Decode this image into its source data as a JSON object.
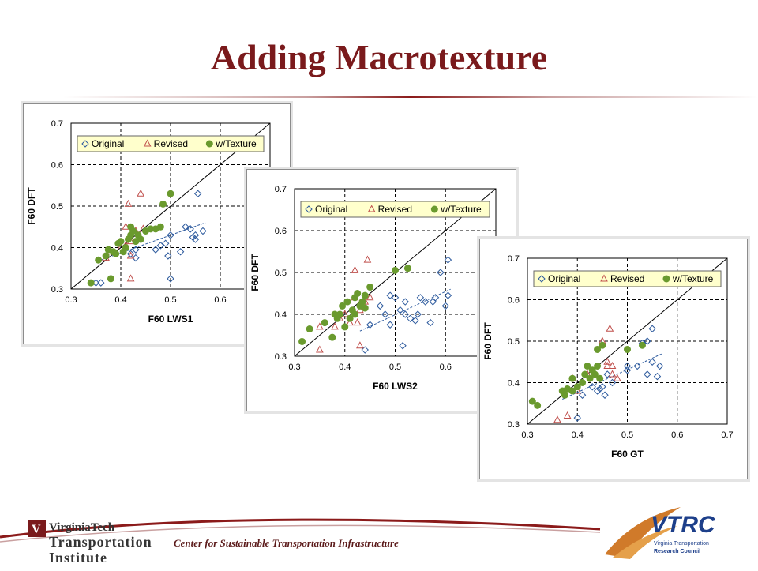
{
  "slide": {
    "title": "Adding Macrotexture",
    "footer_text": "Center for Sustainable Transportation Infrastructure"
  },
  "logos": {
    "vt_line1": "VirginiaTech",
    "vt_line2": "Transportation",
    "vt_line3": "Institute",
    "vtrc_name": "VTRC",
    "vtrc_sub1": "Virginia Transportation",
    "vtrc_sub2": "Research Council"
  },
  "colors": {
    "title": "#7a1a1c",
    "original": "#2e5b9e",
    "revised": "#c0504d",
    "texture": "#6a9a2e",
    "legend_bg": "#ffffcc"
  },
  "chart_data": [
    {
      "type": "scatter",
      "xlabel": "F60 LWS1",
      "ylabel": "F60 DFT",
      "xlim": [
        0.3,
        0.7
      ],
      "ylim": [
        0.3,
        0.7
      ],
      "xticks": [
        "0.3",
        "0.4",
        "0.5",
        "0.6"
      ],
      "yticks": [
        "0.3",
        "0.4",
        "0.5",
        "0.6",
        "0.7"
      ],
      "grid": "dashed",
      "legend": "top",
      "reference_line": "y = x",
      "trend_line": {
        "from": [
          0.36,
          0.37
        ],
        "to": [
          0.57,
          0.46
        ]
      },
      "series": [
        {
          "name": "Original",
          "marker": "diamond",
          "points": [
            [
              0.35,
              0.315
            ],
            [
              0.36,
              0.315
            ],
            [
              0.42,
              0.385
            ],
            [
              0.43,
              0.375
            ],
            [
              0.43,
              0.395
            ],
            [
              0.47,
              0.395
            ],
            [
              0.48,
              0.405
            ],
            [
              0.49,
              0.41
            ],
            [
              0.495,
              0.38
            ],
            [
              0.5,
              0.43
            ],
            [
              0.5,
              0.325
            ],
            [
              0.52,
              0.39
            ],
            [
              0.53,
              0.45
            ],
            [
              0.54,
              0.445
            ],
            [
              0.545,
              0.425
            ],
            [
              0.55,
              0.43
            ],
            [
              0.55,
              0.42
            ],
            [
              0.555,
              0.53
            ],
            [
              0.565,
              0.44
            ]
          ]
        },
        {
          "name": "Revised",
          "marker": "triangle",
          "points": [
            [
              0.37,
              0.375
            ],
            [
              0.38,
              0.39
            ],
            [
              0.4,
              0.4
            ],
            [
              0.41,
              0.405
            ],
            [
              0.41,
              0.45
            ],
            [
              0.415,
              0.505
            ],
            [
              0.42,
              0.38
            ],
            [
              0.42,
              0.415
            ],
            [
              0.42,
              0.325
            ],
            [
              0.43,
              0.44
            ],
            [
              0.44,
              0.53
            ],
            [
              0.445,
              0.445
            ]
          ]
        },
        {
          "name": "w/Texture",
          "marker": "circle",
          "points": [
            [
              0.34,
              0.315
            ],
            [
              0.355,
              0.37
            ],
            [
              0.37,
              0.38
            ],
            [
              0.375,
              0.395
            ],
            [
              0.38,
              0.325
            ],
            [
              0.385,
              0.39
            ],
            [
              0.39,
              0.385
            ],
            [
              0.395,
              0.41
            ],
            [
              0.4,
              0.415
            ],
            [
              0.405,
              0.39
            ],
            [
              0.41,
              0.4
            ],
            [
              0.415,
              0.42
            ],
            [
              0.42,
              0.43
            ],
            [
              0.42,
              0.45
            ],
            [
              0.425,
              0.44
            ],
            [
              0.43,
              0.415
            ],
            [
              0.435,
              0.43
            ],
            [
              0.44,
              0.42
            ],
            [
              0.45,
              0.44
            ],
            [
              0.46,
              0.445
            ],
            [
              0.47,
              0.445
            ],
            [
              0.48,
              0.45
            ],
            [
              0.485,
              0.505
            ],
            [
              0.5,
              0.53
            ]
          ]
        }
      ]
    },
    {
      "type": "scatter",
      "xlabel": "F60 LWS2",
      "ylabel": "F60 DFT",
      "xlim": [
        0.3,
        0.7
      ],
      "ylim": [
        0.3,
        0.7
      ],
      "xticks": [
        "0.3",
        "0.4",
        "0.5",
        "0.6"
      ],
      "yticks": [
        "0.3",
        "0.4",
        "0.5",
        "0.6",
        "0.7"
      ],
      "grid": "dashed",
      "legend": "top",
      "reference_line": "y = x",
      "trend_line": {
        "from": [
          0.43,
          0.36
        ],
        "to": [
          0.61,
          0.46
        ]
      },
      "series": [
        {
          "name": "Original",
          "marker": "diamond",
          "points": [
            [
              0.44,
              0.315
            ],
            [
              0.45,
              0.375
            ],
            [
              0.47,
              0.42
            ],
            [
              0.48,
              0.4
            ],
            [
              0.49,
              0.375
            ],
            [
              0.49,
              0.445
            ],
            [
              0.5,
              0.44
            ],
            [
              0.51,
              0.41
            ],
            [
              0.515,
              0.325
            ],
            [
              0.52,
              0.4
            ],
            [
              0.52,
              0.43
            ],
            [
              0.53,
              0.39
            ],
            [
              0.54,
              0.385
            ],
            [
              0.545,
              0.4
            ],
            [
              0.55,
              0.44
            ],
            [
              0.56,
              0.43
            ],
            [
              0.57,
              0.38
            ],
            [
              0.575,
              0.43
            ],
            [
              0.58,
              0.44
            ],
            [
              0.59,
              0.5
            ],
            [
              0.6,
              0.42
            ],
            [
              0.605,
              0.445
            ],
            [
              0.605,
              0.53
            ]
          ]
        },
        {
          "name": "Revised",
          "marker": "triangle",
          "points": [
            [
              0.35,
              0.315
            ],
            [
              0.35,
              0.37
            ],
            [
              0.38,
              0.37
            ],
            [
              0.39,
              0.39
            ],
            [
              0.4,
              0.4
            ],
            [
              0.41,
              0.38
            ],
            [
              0.42,
              0.4
            ],
            [
              0.42,
              0.44
            ],
            [
              0.42,
              0.505
            ],
            [
              0.425,
              0.38
            ],
            [
              0.43,
              0.325
            ],
            [
              0.43,
              0.41
            ],
            [
              0.44,
              0.43
            ],
            [
              0.445,
              0.53
            ],
            [
              0.45,
              0.44
            ]
          ]
        },
        {
          "name": "w/Texture",
          "marker": "circle",
          "points": [
            [
              0.315,
              0.335
            ],
            [
              0.33,
              0.365
            ],
            [
              0.36,
              0.38
            ],
            [
              0.375,
              0.345
            ],
            [
              0.38,
              0.4
            ],
            [
              0.385,
              0.39
            ],
            [
              0.39,
              0.4
            ],
            [
              0.395,
              0.42
            ],
            [
              0.4,
              0.37
            ],
            [
              0.405,
              0.43
            ],
            [
              0.41,
              0.39
            ],
            [
              0.415,
              0.41
            ],
            [
              0.42,
              0.4
            ],
            [
              0.42,
              0.44
            ],
            [
              0.425,
              0.45
            ],
            [
              0.43,
              0.42
            ],
            [
              0.435,
              0.43
            ],
            [
              0.44,
              0.415
            ],
            [
              0.44,
              0.445
            ],
            [
              0.45,
              0.465
            ],
            [
              0.5,
              0.505
            ],
            [
              0.525,
              0.51
            ]
          ]
        }
      ]
    },
    {
      "type": "scatter",
      "xlabel": "F60 GT",
      "ylabel": "F60 DFT",
      "xlim": [
        0.3,
        0.7
      ],
      "ylim": [
        0.3,
        0.7
      ],
      "xticks": [
        "0.3",
        "0.4",
        "0.5",
        "0.6",
        "0.7"
      ],
      "yticks": [
        "0.3",
        "0.4",
        "0.5",
        "0.6",
        "0.7"
      ],
      "grid": "dashed",
      "legend": "top",
      "reference_line": "y = x",
      "trend_line": {
        "from": [
          0.37,
          0.36
        ],
        "to": [
          0.57,
          0.47
        ]
      },
      "series": [
        {
          "name": "Original",
          "marker": "diamond",
          "points": [
            [
              0.4,
              0.315
            ],
            [
              0.41,
              0.37
            ],
            [
              0.43,
              0.39
            ],
            [
              0.44,
              0.38
            ],
            [
              0.445,
              0.385
            ],
            [
              0.45,
              0.39
            ],
            [
              0.455,
              0.37
            ],
            [
              0.46,
              0.42
            ],
            [
              0.47,
              0.4
            ],
            [
              0.5,
              0.43
            ],
            [
              0.5,
              0.44
            ],
            [
              0.52,
              0.44
            ],
            [
              0.53,
              0.495
            ],
            [
              0.54,
              0.42
            ],
            [
              0.54,
              0.5
            ],
            [
              0.55,
              0.45
            ],
            [
              0.55,
              0.53
            ],
            [
              0.56,
              0.415
            ],
            [
              0.565,
              0.44
            ]
          ]
        },
        {
          "name": "Revised",
          "marker": "triangle",
          "points": [
            [
              0.36,
              0.31
            ],
            [
              0.38,
              0.32
            ],
            [
              0.39,
              0.41
            ],
            [
              0.4,
              0.38
            ],
            [
              0.42,
              0.42
            ],
            [
              0.45,
              0.5
            ],
            [
              0.46,
              0.44
            ],
            [
              0.46,
              0.45
            ],
            [
              0.47,
              0.42
            ],
            [
              0.47,
              0.44
            ],
            [
              0.465,
              0.53
            ],
            [
              0.48,
              0.41
            ]
          ]
        },
        {
          "name": "w/Texture",
          "marker": "circle",
          "points": [
            [
              0.31,
              0.355
            ],
            [
              0.32,
              0.345
            ],
            [
              0.37,
              0.38
            ],
            [
              0.375,
              0.37
            ],
            [
              0.38,
              0.385
            ],
            [
              0.39,
              0.38
            ],
            [
              0.39,
              0.41
            ],
            [
              0.4,
              0.39
            ],
            [
              0.41,
              0.4
            ],
            [
              0.415,
              0.42
            ],
            [
              0.42,
              0.44
            ],
            [
              0.425,
              0.41
            ],
            [
              0.43,
              0.43
            ],
            [
              0.435,
              0.42
            ],
            [
              0.44,
              0.44
            ],
            [
              0.44,
              0.48
            ],
            [
              0.445,
              0.41
            ],
            [
              0.45,
              0.49
            ],
            [
              0.5,
              0.48
            ],
            [
              0.53,
              0.49
            ]
          ]
        }
      ]
    }
  ]
}
